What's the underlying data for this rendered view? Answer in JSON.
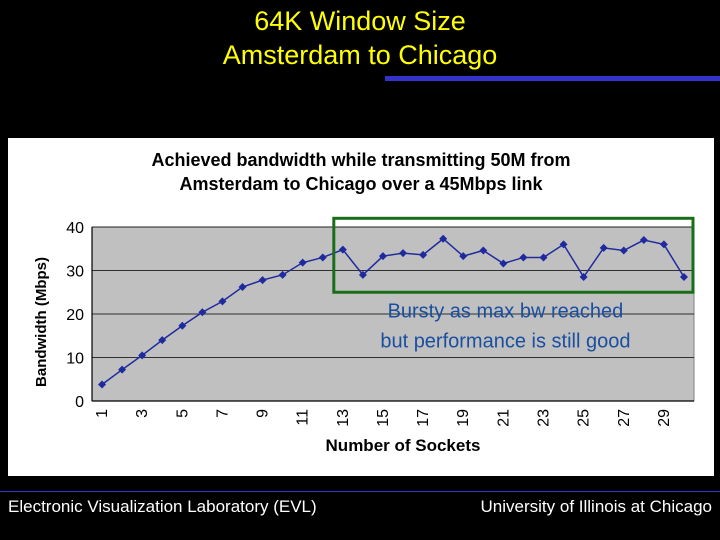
{
  "slide": {
    "title_line1": "64K Window Size",
    "title_line2": "Amsterdam to Chicago"
  },
  "footer": {
    "left": "Electronic Visualization Laboratory (EVL)",
    "right": "University of Illinois at Chicago"
  },
  "colors": {
    "title": "#ffff00",
    "accent_rule": "#3333cc",
    "plot_bg": "#c0c0c0",
    "series": "#1f2a9e",
    "highlight_box": "#1a6e1a",
    "annotation_text": "#1a4fa0"
  },
  "chart_data": {
    "type": "line",
    "title_lines": [
      "Achieved bandwidth while transmitting 50M from",
      "Amsterdam to Chicago over a 45Mbps link"
    ],
    "xlabel": "Number of Sockets",
    "ylabel": "Bandwidth (Mbps)",
    "ylim": [
      0,
      40
    ],
    "yticks": [
      0,
      10,
      20,
      30,
      40
    ],
    "xticks": [
      "1",
      "3",
      "5",
      "7",
      "9",
      "11",
      "13",
      "15",
      "17",
      "19",
      "21",
      "23",
      "25",
      "27",
      "29"
    ],
    "grid": true,
    "x": [
      1,
      2,
      3,
      4,
      5,
      6,
      7,
      8,
      9,
      10,
      11,
      12,
      13,
      14,
      15,
      16,
      17,
      18,
      19,
      20,
      21,
      22,
      23,
      24,
      25,
      26,
      27,
      28,
      29,
      30
    ],
    "series": [
      {
        "values": [
          3.8,
          7.2,
          10.5,
          14,
          17.3,
          20.4,
          22.9,
          26.2,
          27.8,
          29,
          31.8,
          33,
          34.8,
          29,
          33.3,
          34,
          33.6,
          37.3,
          33.3,
          34.6,
          31.6,
          33,
          33,
          36,
          28.5,
          35.2,
          34.6,
          37,
          36,
          28.5
        ]
      }
    ],
    "annotation": {
      "lines": [
        "Bursty as max bw reached",
        "but performance is still good"
      ],
      "x_range": [
        13,
        30
      ],
      "y_range": [
        25,
        42
      ]
    }
  }
}
